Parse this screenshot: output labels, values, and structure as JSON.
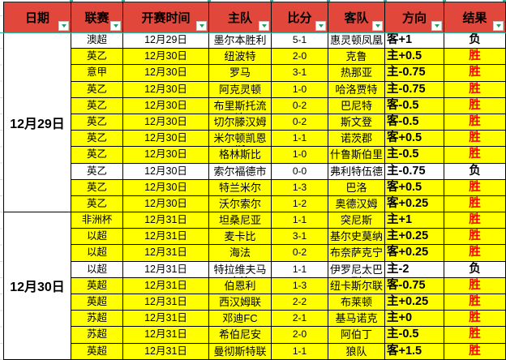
{
  "header": {
    "columns": [
      {
        "label": "日期"
      },
      {
        "label": "联赛"
      },
      {
        "label": "开赛时间"
      },
      {
        "label": "主队"
      },
      {
        "label": "比分"
      },
      {
        "label": "客队"
      },
      {
        "label": "方向"
      },
      {
        "label": "结果"
      }
    ]
  },
  "groups": [
    {
      "date": "12月29日",
      "row_count": 11
    },
    {
      "date": "12月30日",
      "row_count": 9
    }
  ],
  "rows": [
    {
      "league": "澳超",
      "time": "12月29日",
      "home": "墨尔本胜利",
      "score": "5-1",
      "away": "惠灵顿凤凰",
      "direction": "客+1",
      "result": "负",
      "highlight": false
    },
    {
      "league": "英乙",
      "time": "12月30日",
      "home": "纽波特",
      "score": "2-0",
      "away": "克鲁",
      "direction": "主+0.5",
      "result": "胜",
      "highlight": true
    },
    {
      "league": "意甲",
      "time": "12月30日",
      "home": "罗马",
      "score": "3-1",
      "away": "热那亚",
      "direction": "主-0.75",
      "result": "胜",
      "highlight": true
    },
    {
      "league": "英乙",
      "time": "12月30日",
      "home": "阿克灵顿",
      "score": "1-0",
      "away": "哈洛贾特",
      "direction": "主-0.75",
      "result": "胜",
      "highlight": true
    },
    {
      "league": "英乙",
      "time": "12月30日",
      "home": "布里斯托流浪",
      "score": "0-2",
      "away": "巴尼特",
      "direction": "客-0.5",
      "result": "胜",
      "highlight": true
    },
    {
      "league": "英乙",
      "time": "12月30日",
      "home": "切尔滕汉姆",
      "score": "0-2",
      "away": "斯文登",
      "direction": "客-0.5",
      "result": "胜",
      "highlight": true
    },
    {
      "league": "英乙",
      "time": "12月30日",
      "home": "米尔顿凯恩斯",
      "score": "1-1",
      "away": "诺茨郡",
      "direction": "客+0.5",
      "result": "胜",
      "highlight": true
    },
    {
      "league": "英乙",
      "time": "12月30日",
      "home": "格林斯比",
      "score": "1-0",
      "away": "什鲁斯伯里",
      "direction": "主-0.5",
      "result": "胜",
      "highlight": true
    },
    {
      "league": "英乙",
      "time": "12月30日",
      "home": "索尔福德市",
      "score": "0-0",
      "away": "弗利特伍德",
      "direction": "主-0.75",
      "result": "负",
      "highlight": false
    },
    {
      "league": "英乙",
      "time": "12月30日",
      "home": "特兰米尔",
      "score": "1-3",
      "away": "巴洛",
      "direction": "客+0.5",
      "result": "胜",
      "highlight": true
    },
    {
      "league": "英乙",
      "time": "12月30日",
      "home": "沃尔索尔",
      "score": "1-2",
      "away": "奥德汉姆",
      "direction": "客+0.25",
      "result": "胜",
      "highlight": true
    },
    {
      "league": "非洲杯",
      "time": "12月31日",
      "home": "坦桑尼亚",
      "score": "1-1",
      "away": "突尼斯",
      "direction": "主+1",
      "result": "胜",
      "highlight": true
    },
    {
      "league": "以超",
      "time": "12月31日",
      "home": "麦卡比",
      "score": "3-1",
      "away": "基尔史莫纳",
      "direction": "主+0.25",
      "result": "胜",
      "highlight": true
    },
    {
      "league": "以超",
      "time": "12月31日",
      "home": "海法",
      "score": "0-2",
      "away": "布奈萨克宁",
      "direction": "客+0.25",
      "result": "胜",
      "highlight": true
    },
    {
      "league": "以超",
      "time": "12月31日",
      "home": "特拉维夫马卡比",
      "score": "1-1",
      "away": "伊罗尼太巴列",
      "direction": "主-2",
      "result": "负",
      "highlight": false
    },
    {
      "league": "英超",
      "time": "12月31日",
      "home": "伯恩利",
      "score": "1-3",
      "away": "纽卡斯尔联",
      "direction": "客-0.75",
      "result": "胜",
      "highlight": true
    },
    {
      "league": "英超",
      "time": "12月31日",
      "home": "西汉姆联",
      "score": "2-2",
      "away": "布莱顿",
      "direction": "主+0.25",
      "result": "胜",
      "highlight": true
    },
    {
      "league": "苏超",
      "time": "12月31日",
      "home": "邓迪FC",
      "score": "2-1",
      "away": "基马诺克",
      "direction": "主+0",
      "result": "胜",
      "highlight": true
    },
    {
      "league": "苏超",
      "time": "12月31日",
      "home": "希伯尼安",
      "score": "2-0",
      "away": "阿伯丁",
      "direction": "主-0.5",
      "result": "胜",
      "highlight": true
    },
    {
      "league": "英超",
      "time": "12月31日",
      "home": "曼彻斯特联",
      "score": "1-1",
      "away": "狼队",
      "direction": "客+1.5",
      "result": "胜",
      "highlight": true
    }
  ],
  "result_styles": {
    "win_text": "胜",
    "loss_text": "负"
  },
  "colors": {
    "header_bg": "#e2473b",
    "row_highlight": "#ffff00",
    "win_text_color": "#ff0000",
    "filter_arrow": "#1e9e5f",
    "header_underline": "#2ab39b",
    "table_border": "#000000"
  }
}
